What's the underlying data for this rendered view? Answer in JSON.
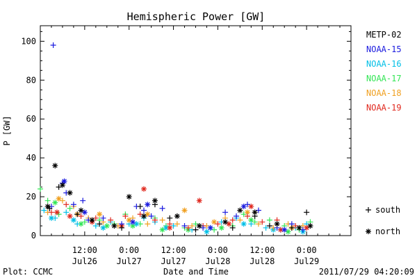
{
  "chart_data": {
    "type": "scatter",
    "title": "Hemispheric Power [GW]",
    "ylabel": "P [GW]",
    "xlabel": "Date and Time",
    "ylim": [
      0,
      108
    ],
    "yticks": [
      0,
      20,
      40,
      60,
      80,
      100
    ],
    "x_unit": "hours since 2011-07-25 12:00",
    "xlim": [
      0,
      84
    ],
    "xticks": [
      {
        "x": 12,
        "time": "12:00",
        "date": "Jul26"
      },
      {
        "x": 24,
        "time": "0:00",
        "date": "Jul27"
      },
      {
        "x": 36,
        "time": "12:00",
        "date": "Jul27"
      },
      {
        "x": 48,
        "time": "0:00",
        "date": "Jul28"
      },
      {
        "x": 60,
        "time": "12:00",
        "date": "Jul28"
      },
      {
        "x": 72,
        "time": "0:00",
        "date": "Jul29"
      }
    ],
    "legend_position": "right",
    "marker_legend": [
      {
        "symbol": "+",
        "label": "south"
      },
      {
        "symbol": "*",
        "label": "north"
      }
    ],
    "series": [
      {
        "name": "METP-02",
        "color": "#000000",
        "south": [
          [
            2.5,
            14
          ],
          [
            5,
            25
          ],
          [
            10,
            11
          ],
          [
            16,
            6
          ],
          [
            22,
            4
          ],
          [
            27,
            15
          ],
          [
            31,
            16
          ],
          [
            35,
            9
          ],
          [
            42,
            3
          ],
          [
            52,
            4
          ],
          [
            58,
            10
          ],
          [
            62,
            5
          ],
          [
            68,
            4
          ],
          [
            72,
            12
          ]
        ],
        "north": [
          [
            2,
            15
          ],
          [
            4,
            36
          ],
          [
            6,
            26
          ],
          [
            8,
            22
          ],
          [
            11,
            13
          ],
          [
            14,
            8
          ],
          [
            20,
            5
          ],
          [
            24,
            20
          ],
          [
            28,
            10
          ],
          [
            31,
            18
          ],
          [
            37,
            10
          ],
          [
            43,
            5
          ],
          [
            50,
            7
          ],
          [
            54,
            13
          ],
          [
            58,
            12
          ],
          [
            64,
            6
          ],
          [
            70,
            4
          ],
          [
            73,
            5
          ]
        ]
      },
      {
        "name": "NOAA-15",
        "color": "#1a1adf",
        "south": [
          [
            3.5,
            98
          ],
          [
            3,
            15
          ],
          [
            6,
            27
          ],
          [
            7,
            22
          ],
          [
            9,
            16
          ],
          [
            11.5,
            18
          ],
          [
            13,
            8
          ],
          [
            17,
            9
          ],
          [
            22,
            6
          ],
          [
            26,
            15
          ],
          [
            28,
            13
          ],
          [
            30,
            10
          ],
          [
            33,
            14
          ],
          [
            39,
            5
          ],
          [
            44,
            4
          ],
          [
            50,
            12
          ],
          [
            53,
            10
          ],
          [
            56,
            16
          ],
          [
            59,
            13
          ],
          [
            64,
            4
          ],
          [
            68,
            6
          ],
          [
            71,
            3
          ]
        ],
        "north": [
          [
            6.5,
            28
          ],
          [
            12,
            12
          ],
          [
            25,
            7
          ],
          [
            29,
            16
          ],
          [
            46,
            4
          ],
          [
            55,
            15
          ],
          [
            66,
            3
          ]
        ]
      },
      {
        "name": "NOAA-16",
        "color": "#00bfe6",
        "south": [
          [
            1,
            13
          ],
          [
            4,
            9
          ],
          [
            7,
            12
          ],
          [
            10,
            6
          ],
          [
            15,
            5
          ],
          [
            19,
            7
          ],
          [
            24,
            6
          ],
          [
            28,
            9
          ],
          [
            31,
            7
          ],
          [
            36,
            5
          ],
          [
            41,
            3
          ],
          [
            46,
            4
          ],
          [
            49,
            7
          ],
          [
            53,
            9
          ],
          [
            57,
            6
          ],
          [
            61,
            4
          ],
          [
            65,
            3
          ],
          [
            69,
            4
          ],
          [
            72,
            6
          ]
        ],
        "north": [
          [
            3,
            9
          ],
          [
            9,
            8
          ],
          [
            17,
            4
          ],
          [
            26,
            6
          ],
          [
            34,
            4
          ],
          [
            45,
            2
          ],
          [
            55,
            6
          ],
          [
            63,
            3
          ],
          [
            71,
            2
          ]
        ]
      },
      {
        "name": "NOAA-17",
        "color": "#33e655",
        "south": [
          [
            0,
            24
          ],
          [
            2,
            18
          ],
          [
            5,
            11
          ],
          [
            8,
            14
          ],
          [
            12,
            7
          ],
          [
            16,
            8
          ],
          [
            20,
            6
          ],
          [
            23,
            11
          ],
          [
            27,
            6
          ],
          [
            31,
            9
          ],
          [
            34,
            5
          ],
          [
            39,
            4
          ],
          [
            42,
            6
          ],
          [
            47,
            3
          ],
          [
            52,
            5
          ],
          [
            55,
            11
          ],
          [
            58,
            7
          ],
          [
            62,
            8
          ],
          [
            66,
            5
          ],
          [
            70,
            3
          ],
          [
            73,
            7
          ]
        ],
        "north": [
          [
            4,
            17
          ],
          [
            11,
            6
          ],
          [
            18,
            5
          ],
          [
            25,
            5
          ],
          [
            33,
            3
          ],
          [
            40,
            3
          ],
          [
            49,
            4
          ],
          [
            57,
            8
          ],
          [
            67,
            2
          ]
        ]
      },
      {
        "name": "NOAA-18",
        "color": "#f0a020",
        "south": [
          [
            2,
            12
          ],
          [
            6,
            18
          ],
          [
            9,
            15
          ],
          [
            13,
            9
          ],
          [
            17,
            7
          ],
          [
            21,
            5
          ],
          [
            25,
            9
          ],
          [
            29,
            6
          ],
          [
            33,
            8
          ],
          [
            37,
            6
          ],
          [
            41,
            5
          ],
          [
            45,
            5
          ],
          [
            50,
            9
          ],
          [
            54,
            8
          ],
          [
            59,
            6
          ],
          [
            63,
            4
          ],
          [
            67,
            6
          ],
          [
            71,
            5
          ]
        ],
        "north": [
          [
            5,
            19
          ],
          [
            10,
            11
          ],
          [
            16,
            11
          ],
          [
            24,
            8
          ],
          [
            29,
            11
          ],
          [
            39,
            13
          ],
          [
            47,
            7
          ],
          [
            56,
            12
          ],
          [
            68,
            4
          ]
        ]
      },
      {
        "name": "NOAA-19",
        "color": "#e0281e",
        "south": [
          [
            3,
            12
          ],
          [
            7,
            16
          ],
          [
            11,
            10
          ],
          [
            15,
            9
          ],
          [
            19,
            8
          ],
          [
            23,
            10
          ],
          [
            27,
            11
          ],
          [
            31,
            8
          ],
          [
            35,
            6
          ],
          [
            40,
            4
          ],
          [
            44,
            5
          ],
          [
            48,
            6
          ],
          [
            52,
            8
          ],
          [
            56,
            10
          ],
          [
            60,
            7
          ],
          [
            64,
            8
          ],
          [
            69,
            5
          ]
        ],
        "north": [
          [
            4.5,
            12
          ],
          [
            8,
            10
          ],
          [
            14,
            7
          ],
          [
            22,
            5
          ],
          [
            28,
            24
          ],
          [
            35,
            4
          ],
          [
            43,
            18
          ],
          [
            51,
            6
          ],
          [
            57,
            15
          ],
          [
            65,
            3
          ],
          [
            72,
            4
          ]
        ]
      }
    ]
  },
  "footer": {
    "left": "Plot: CCMC",
    "right": "2011/07/29 04:20:09"
  }
}
